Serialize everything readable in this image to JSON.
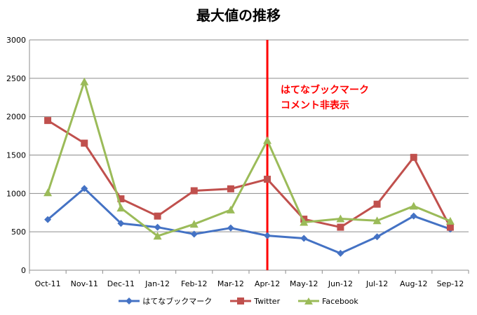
{
  "chart_data": {
    "type": "line",
    "title": "最大値の推移",
    "categories": [
      "Oct-11",
      "Nov-11",
      "Dec-11",
      "Jan-12",
      "Feb-12",
      "Mar-12",
      "Apr-12",
      "May-12",
      "Jun-12",
      "Jul-12",
      "Aug-12",
      "Sep-12"
    ],
    "ylim": [
      0,
      3000
    ],
    "yticks": [
      0,
      500,
      1000,
      1500,
      2000,
      2500,
      3000
    ],
    "grid": true,
    "legend_position": "bottom",
    "series": [
      {
        "name": "はてなブックマーク",
        "color": "#4472c4",
        "marker": "diamond",
        "values": [
          660,
          1065,
          610,
          560,
          470,
          550,
          450,
          415,
          220,
          435,
          705,
          535
        ]
      },
      {
        "name": "Twitter",
        "color": "#c0504d",
        "marker": "square",
        "values": [
          1950,
          1655,
          930,
          705,
          1035,
          1060,
          1185,
          665,
          560,
          860,
          1470,
          560
        ]
      },
      {
        "name": "Facebook",
        "color": "#9bbb59",
        "marker": "triangle",
        "values": [
          1010,
          2455,
          810,
          445,
          600,
          785,
          1690,
          625,
          670,
          645,
          835,
          640
        ]
      }
    ],
    "annotation": {
      "text_line1": "はてなブックマーク",
      "text_line2": "コメント非表示",
      "at_category": "Apr-12",
      "color": "#ff0000"
    }
  }
}
